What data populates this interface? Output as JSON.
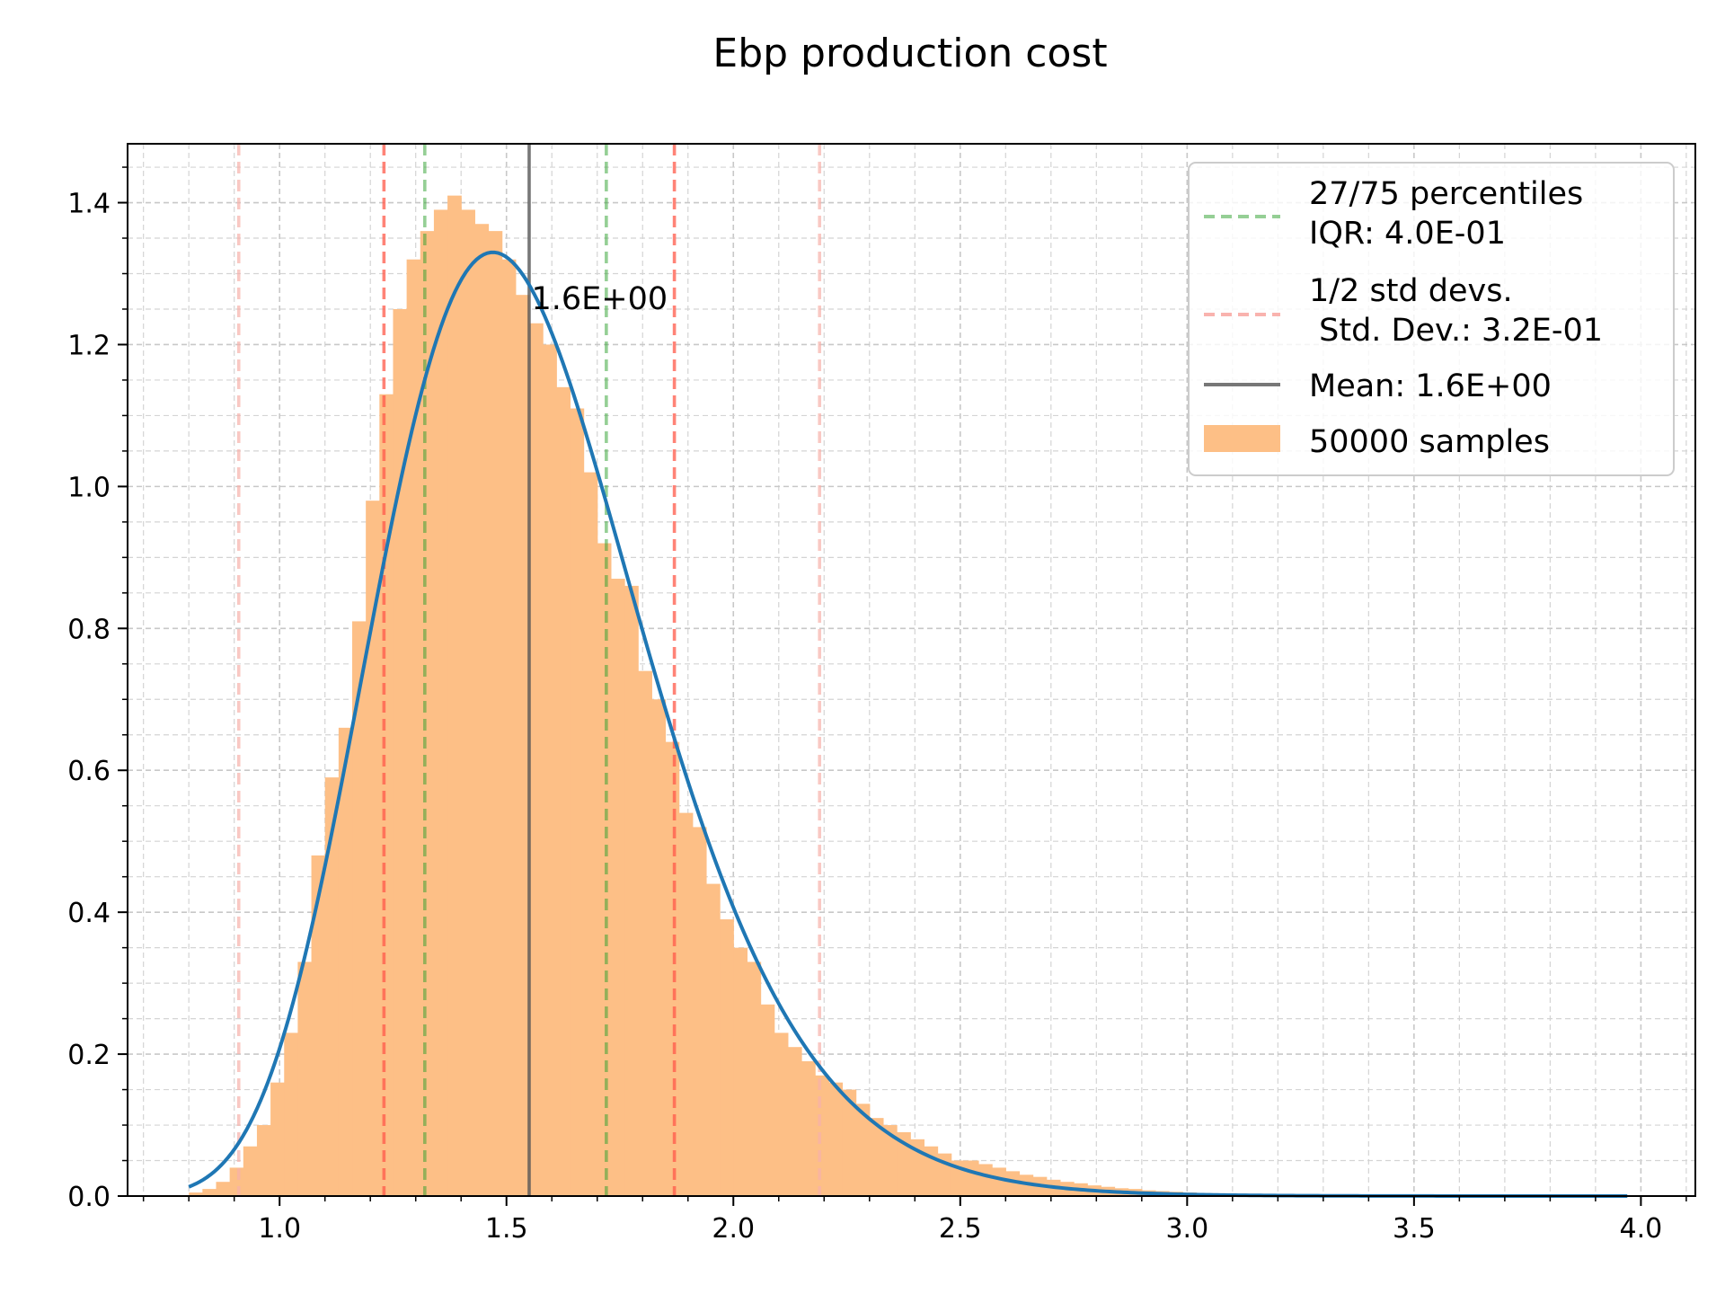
{
  "chart_data": {
    "type": "histogram",
    "title": "Ebp production cost",
    "xlabel": "",
    "ylabel": "",
    "xlim": [
      0.665,
      4.12
    ],
    "ylim": [
      0,
      1.483
    ],
    "x_major_ticks": [
      1.0,
      1.5,
      2.0,
      2.5,
      3.0,
      3.5,
      4.0
    ],
    "x_tick_labels": [
      "1.0",
      "1.5",
      "2.0",
      "2.5",
      "3.0",
      "3.5",
      "4.0"
    ],
    "y_major_ticks": [
      0.0,
      0.2,
      0.4,
      0.6,
      0.8,
      1.0,
      1.2,
      1.4
    ],
    "y_tick_labels": [
      "0.0",
      "0.2",
      "0.4",
      "0.6",
      "0.8",
      "1.0",
      "1.2",
      "1.4"
    ],
    "x_minor_step": 0.1,
    "y_minor_step": 0.05,
    "grid": true,
    "legend_position": "top-right",
    "histogram": {
      "name": "50000 samples",
      "color": "#fdbf86",
      "bin_edges": [
        0.8,
        0.83,
        0.86,
        0.89,
        0.92,
        0.95,
        0.98,
        1.01,
        1.04,
        1.07,
        1.1,
        1.13,
        1.16,
        1.19,
        1.22,
        1.25,
        1.28,
        1.31,
        1.34,
        1.37,
        1.4,
        1.43,
        1.46,
        1.49,
        1.52,
        1.55,
        1.58,
        1.61,
        1.64,
        1.67,
        1.7,
        1.73,
        1.76,
        1.79,
        1.82,
        1.85,
        1.88,
        1.91,
        1.94,
        1.97,
        2.0,
        2.03,
        2.06,
        2.09,
        2.12,
        2.15,
        2.18,
        2.21,
        2.24,
        2.27,
        2.3,
        2.33,
        2.36,
        2.39,
        2.42,
        2.45,
        2.48,
        2.51,
        2.54,
        2.57,
        2.6,
        2.63,
        2.66,
        2.69,
        2.72,
        2.75,
        2.78,
        2.81,
        2.84,
        2.87,
        2.9,
        2.93,
        2.96,
        2.99,
        3.02,
        3.05,
        3.08,
        3.11,
        3.14,
        3.17,
        3.2
      ],
      "densities": [
        0.005,
        0.01,
        0.02,
        0.04,
        0.07,
        0.1,
        0.16,
        0.23,
        0.33,
        0.48,
        0.59,
        0.66,
        0.81,
        0.98,
        1.13,
        1.25,
        1.32,
        1.36,
        1.39,
        1.41,
        1.39,
        1.37,
        1.36,
        1.32,
        1.27,
        1.23,
        1.2,
        1.14,
        1.11,
        1.02,
        0.92,
        0.87,
        0.86,
        0.74,
        0.7,
        0.64,
        0.54,
        0.52,
        0.44,
        0.39,
        0.35,
        0.33,
        0.27,
        0.23,
        0.21,
        0.19,
        0.17,
        0.16,
        0.15,
        0.13,
        0.11,
        0.1,
        0.09,
        0.08,
        0.07,
        0.06,
        0.05,
        0.05,
        0.045,
        0.04,
        0.035,
        0.03,
        0.027,
        0.023,
        0.02,
        0.018,
        0.015,
        0.013,
        0.011,
        0.01,
        0.008,
        0.007,
        0.006,
        0.005,
        0.004,
        0.003,
        0.003,
        0.002,
        0.002,
        0.001
      ]
    },
    "pdf_curve": {
      "name": "",
      "color": "#1f77b4",
      "distribution": "lognormal",
      "median": 1.53,
      "sigma": 0.2,
      "x_range": [
        0.8,
        3.97
      ]
    },
    "vlines": [
      {
        "group": "percentiles",
        "x": 1.32,
        "color": "#2ca02c",
        "style": "dashed",
        "opacity": 0.5
      },
      {
        "group": "percentiles",
        "x": 1.72,
        "color": "#2ca02c",
        "style": "dashed",
        "opacity": 0.5
      },
      {
        "group": "std1",
        "x": 1.23,
        "color": "#ff5a4a",
        "style": "dashed",
        "opacity": 0.75
      },
      {
        "group": "std1",
        "x": 1.87,
        "color": "#ff5a4a",
        "style": "dashed",
        "opacity": 0.75
      },
      {
        "group": "std2",
        "x": 0.91,
        "color": "#f7b0aa",
        "style": "dashed",
        "opacity": 0.7
      },
      {
        "group": "std2",
        "x": 2.19,
        "color": "#f7b0aa",
        "style": "dashed",
        "opacity": 0.7
      },
      {
        "group": "mean",
        "x": 1.55,
        "color": "#555555",
        "style": "solid",
        "opacity": 0.8
      }
    ],
    "annotations": [
      {
        "text": "1.6E+00",
        "x": 1.555,
        "y": 1.25
      }
    ],
    "legend": [
      {
        "lines": [
          "27/75 percentiles",
          "IQR: 4.0E-01"
        ],
        "marker": "dashed-line",
        "color": "#2ca02c"
      },
      {
        "lines": [
          "1/2 std devs.",
          " Std. Dev.: 3.2E-01"
        ],
        "marker": "dashed-line",
        "color": "#f7a09a"
      },
      {
        "lines": [
          "Mean: 1.6E+00"
        ],
        "marker": "solid-line",
        "color": "#777777"
      },
      {
        "lines": [
          "50000 samples"
        ],
        "marker": "patch",
        "color": "#fdbf86"
      }
    ]
  }
}
